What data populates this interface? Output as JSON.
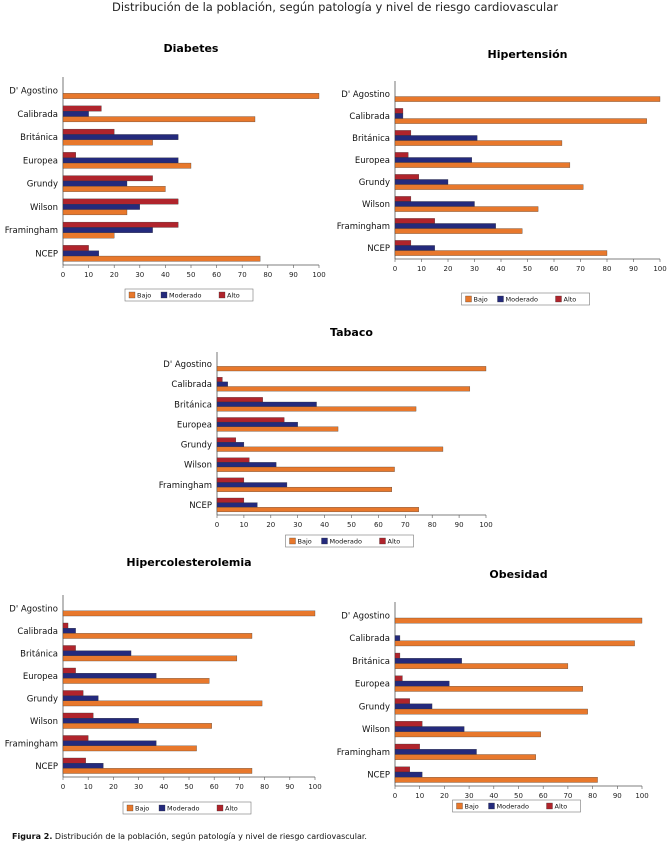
{
  "page_title": "Distribución de la población, según patología y nivel de riesgo cardiovascular",
  "caption_label": "Figura 2.",
  "caption_text": " Distribución de la población, según patología y nivel de riesgo cardiovascular.",
  "colors": {
    "Bajo": "#e8782c",
    "Moderado": "#242a7c",
    "Alto": "#b0242c"
  },
  "chart_data": [
    {
      "type": "bar",
      "title": "Diabetes",
      "categories": [
        "D' Agostino",
        "Calibrada",
        "Británica",
        "Europea",
        "Grundy",
        "Wilson",
        "Framingham",
        "NCEP"
      ],
      "series": [
        {
          "name": "Alto",
          "values": [
            0,
            15,
            20,
            5,
            35,
            45,
            45,
            10
          ]
        },
        {
          "name": "Moderado",
          "values": [
            0,
            10,
            45,
            45,
            25,
            30,
            35,
            14
          ]
        },
        {
          "name": "Bajo",
          "values": [
            100,
            75,
            35,
            50,
            40,
            25,
            20,
            77
          ]
        }
      ],
      "xlim": [
        0,
        100
      ],
      "ticks": [
        0,
        10,
        20,
        30,
        40,
        50,
        60,
        70,
        80,
        90,
        100
      ],
      "legend": "bottom"
    },
    {
      "type": "bar",
      "title": "Hipertensión",
      "categories": [
        "D' Agostino",
        "Calibrada",
        "Británica",
        "Europea",
        "Grundy",
        "Wilson",
        "Framingham",
        "NCEP"
      ],
      "series": [
        {
          "name": "Alto",
          "values": [
            0,
            3,
            6,
            5,
            9,
            6,
            15,
            6
          ]
        },
        {
          "name": "Moderado",
          "values": [
            0,
            3,
            31,
            29,
            20,
            30,
            38,
            15
          ]
        },
        {
          "name": "Bajo",
          "values": [
            100,
            95,
            63,
            66,
            71,
            54,
            48,
            80
          ]
        }
      ],
      "xlim": [
        0,
        100
      ],
      "ticks": [
        0,
        10,
        20,
        30,
        40,
        50,
        60,
        70,
        80,
        90,
        100
      ],
      "legend": "bottom"
    },
    {
      "type": "bar",
      "title": "Tabaco",
      "categories": [
        "D' Agostino",
        "Calibrada",
        "Británica",
        "Europea",
        "Grundy",
        "Wilson",
        "Framingham",
        "NCEP"
      ],
      "series": [
        {
          "name": "Alto",
          "values": [
            0,
            2,
            17,
            25,
            7,
            12,
            10,
            10
          ]
        },
        {
          "name": "Moderado",
          "values": [
            0,
            4,
            37,
            30,
            10,
            22,
            26,
            15
          ]
        },
        {
          "name": "Bajo",
          "values": [
            100,
            94,
            74,
            45,
            84,
            66,
            65,
            75
          ]
        }
      ],
      "xlim": [
        0,
        100
      ],
      "ticks": [
        0,
        10,
        20,
        30,
        40,
        50,
        60,
        70,
        80,
        90,
        100
      ],
      "legend": "bottom"
    },
    {
      "type": "bar",
      "title": "Hipercolesterolemia",
      "categories": [
        "D' Agostino",
        "Calibrada",
        "Británica",
        "Europea",
        "Grundy",
        "Wilson",
        "Framingham",
        "NCEP"
      ],
      "series": [
        {
          "name": "Alto",
          "values": [
            0,
            2,
            5,
            5,
            8,
            12,
            10,
            9
          ]
        },
        {
          "name": "Moderado",
          "values": [
            0,
            5,
            27,
            37,
            14,
            30,
            37,
            16
          ]
        },
        {
          "name": "Bajo",
          "values": [
            100,
            75,
            69,
            58,
            79,
            59,
            53,
            75
          ]
        }
      ],
      "xlim": [
        0,
        100
      ],
      "ticks": [
        0,
        10,
        20,
        30,
        40,
        50,
        60,
        70,
        80,
        90,
        100
      ],
      "legend": "bottom"
    },
    {
      "type": "bar",
      "title": "Obesidad",
      "categories": [
        "D' Agostino",
        "Calibrada",
        "Británica",
        "Europea",
        "Grundy",
        "Wilson",
        "Framingham",
        "NCEP"
      ],
      "series": [
        {
          "name": "Alto",
          "values": [
            0,
            0,
            2,
            3,
            6,
            11,
            10,
            6
          ]
        },
        {
          "name": "Moderado",
          "values": [
            0,
            2,
            27,
            22,
            15,
            28,
            33,
            11
          ]
        },
        {
          "name": "Bajo",
          "values": [
            100,
            97,
            70,
            76,
            78,
            59,
            57,
            82
          ]
        }
      ],
      "xlim": [
        0,
        100
      ],
      "ticks": [
        0,
        10,
        20,
        30,
        40,
        50,
        60,
        70,
        80,
        90,
        100
      ],
      "legend": "bottom"
    }
  ]
}
